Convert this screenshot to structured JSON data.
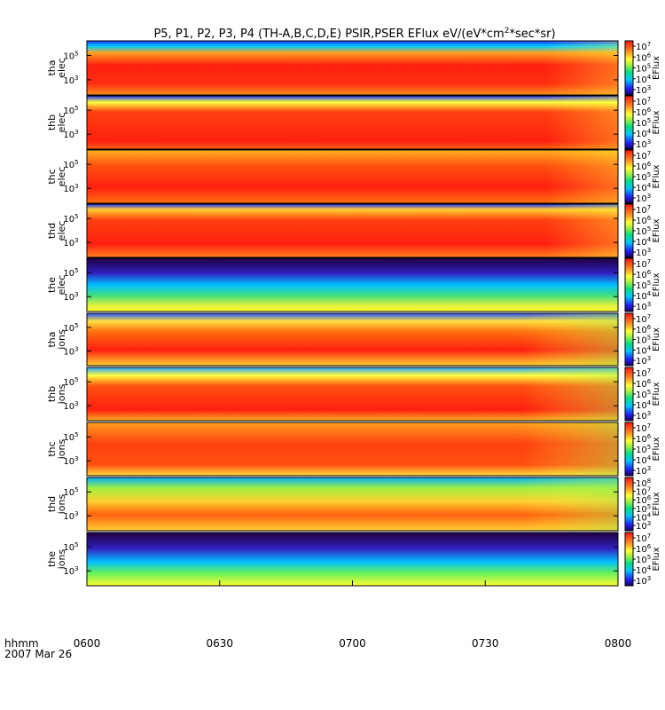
{
  "title": "P5, P1, P2, P3, P4 (TH-A,B,C,D,E) PSIR,PSER EFlux eV/(eV*cm",
  "title_sup": "2",
  "title_end": "*sec*sr)",
  "time_unit_label": "hhmm",
  "date_label": "2007 Mar 26",
  "x_ticks": [
    "0600",
    "0630",
    "0700",
    "0730",
    "0800"
  ],
  "colorbar_label": "EFlux",
  "chart_data": {
    "type": "heatmap",
    "x_range": [
      "06:00",
      "08:00"
    ],
    "panels": [
      {
        "line1": "tha",
        "line2": "elec",
        "yticks": [
          {
            "base": "10",
            "exp": "5",
            "value": 100000
          },
          {
            "base": "10",
            "exp": "3",
            "value": 1000
          }
        ],
        "cbar_ticks": [
          {
            "base": "10",
            "exp": "7"
          },
          {
            "base": "10",
            "exp": "6"
          },
          {
            "base": "10",
            "exp": "5"
          },
          {
            "base": "10",
            "exp": "4"
          },
          {
            "base": "10",
            "exp": "3"
          }
        ]
      },
      {
        "line1": "thb",
        "line2": "elec",
        "yticks": [
          {
            "base": "10",
            "exp": "5",
            "value": 100000
          },
          {
            "base": "10",
            "exp": "3",
            "value": 1000
          }
        ],
        "cbar_ticks": [
          {
            "base": "10",
            "exp": "7"
          },
          {
            "base": "10",
            "exp": "6"
          },
          {
            "base": "10",
            "exp": "5"
          },
          {
            "base": "10",
            "exp": "4"
          },
          {
            "base": "10",
            "exp": "3"
          }
        ]
      },
      {
        "line1": "thc",
        "line2": "elec",
        "yticks": [
          {
            "base": "10",
            "exp": "5",
            "value": 100000
          },
          {
            "base": "10",
            "exp": "3",
            "value": 1000
          }
        ],
        "cbar_ticks": [
          {
            "base": "10",
            "exp": "7"
          },
          {
            "base": "10",
            "exp": "6"
          },
          {
            "base": "10",
            "exp": "5"
          },
          {
            "base": "10",
            "exp": "4"
          },
          {
            "base": "10",
            "exp": "3"
          }
        ]
      },
      {
        "line1": "thd",
        "line2": "elec",
        "yticks": [
          {
            "base": "10",
            "exp": "5",
            "value": 100000
          },
          {
            "base": "10",
            "exp": "3",
            "value": 1000
          }
        ],
        "cbar_ticks": [
          {
            "base": "10",
            "exp": "7"
          },
          {
            "base": "10",
            "exp": "6"
          },
          {
            "base": "10",
            "exp": "5"
          },
          {
            "base": "10",
            "exp": "4"
          },
          {
            "base": "10",
            "exp": "3"
          }
        ]
      },
      {
        "line1": "the",
        "line2": "elec",
        "yticks": [
          {
            "base": "10",
            "exp": "5",
            "value": 100000
          },
          {
            "base": "10",
            "exp": "3",
            "value": 1000
          }
        ],
        "cbar_ticks": [
          {
            "base": "10",
            "exp": "7"
          },
          {
            "base": "10",
            "exp": "6"
          },
          {
            "base": "10",
            "exp": "5"
          },
          {
            "base": "10",
            "exp": "4"
          },
          {
            "base": "10",
            "exp": "3"
          }
        ]
      },
      {
        "line1": "tha",
        "line2": "ions",
        "yticks": [
          {
            "base": "10",
            "exp": "5",
            "value": 100000
          },
          {
            "base": "10",
            "exp": "3",
            "value": 1000
          }
        ],
        "cbar_ticks": [
          {
            "base": "10",
            "exp": "7"
          },
          {
            "base": "10",
            "exp": "6"
          },
          {
            "base": "10",
            "exp": "5"
          },
          {
            "base": "10",
            "exp": "4"
          },
          {
            "base": "10",
            "exp": "3"
          }
        ]
      },
      {
        "line1": "thb",
        "line2": "ions",
        "yticks": [
          {
            "base": "10",
            "exp": "5",
            "value": 100000
          },
          {
            "base": "10",
            "exp": "3",
            "value": 1000
          }
        ],
        "cbar_ticks": [
          {
            "base": "10",
            "exp": "7"
          },
          {
            "base": "10",
            "exp": "6"
          },
          {
            "base": "10",
            "exp": "5"
          },
          {
            "base": "10",
            "exp": "4"
          },
          {
            "base": "10",
            "exp": "3"
          }
        ]
      },
      {
        "line1": "thc",
        "line2": "ions",
        "yticks": [
          {
            "base": "10",
            "exp": "5",
            "value": 100000
          },
          {
            "base": "10",
            "exp": "3",
            "value": 1000
          }
        ],
        "cbar_ticks": [
          {
            "base": "10",
            "exp": "7"
          },
          {
            "base": "10",
            "exp": "6"
          },
          {
            "base": "10",
            "exp": "5"
          },
          {
            "base": "10",
            "exp": "4"
          },
          {
            "base": "10",
            "exp": "3"
          }
        ]
      },
      {
        "line1": "thd",
        "line2": "ions",
        "yticks": [
          {
            "base": "10",
            "exp": "5",
            "value": 100000
          },
          {
            "base": "10",
            "exp": "3",
            "value": 1000
          }
        ],
        "cbar_ticks": [
          {
            "base": "10",
            "exp": "8"
          },
          {
            "base": "10",
            "exp": "7"
          },
          {
            "base": "10",
            "exp": "6"
          },
          {
            "base": "10",
            "exp": "5"
          },
          {
            "base": "10",
            "exp": "4"
          },
          {
            "base": "10",
            "exp": "3"
          }
        ]
      },
      {
        "line1": "the",
        "line2": "ions",
        "yticks": [
          {
            "base": "10",
            "exp": "5",
            "value": 100000
          },
          {
            "base": "10",
            "exp": "3",
            "value": 1000
          }
        ],
        "cbar_ticks": [
          {
            "base": "10",
            "exp": "7"
          },
          {
            "base": "10",
            "exp": "6"
          },
          {
            "base": "10",
            "exp": "5"
          },
          {
            "base": "10",
            "exp": "4"
          },
          {
            "base": "10",
            "exp": "3"
          }
        ]
      }
    ]
  }
}
